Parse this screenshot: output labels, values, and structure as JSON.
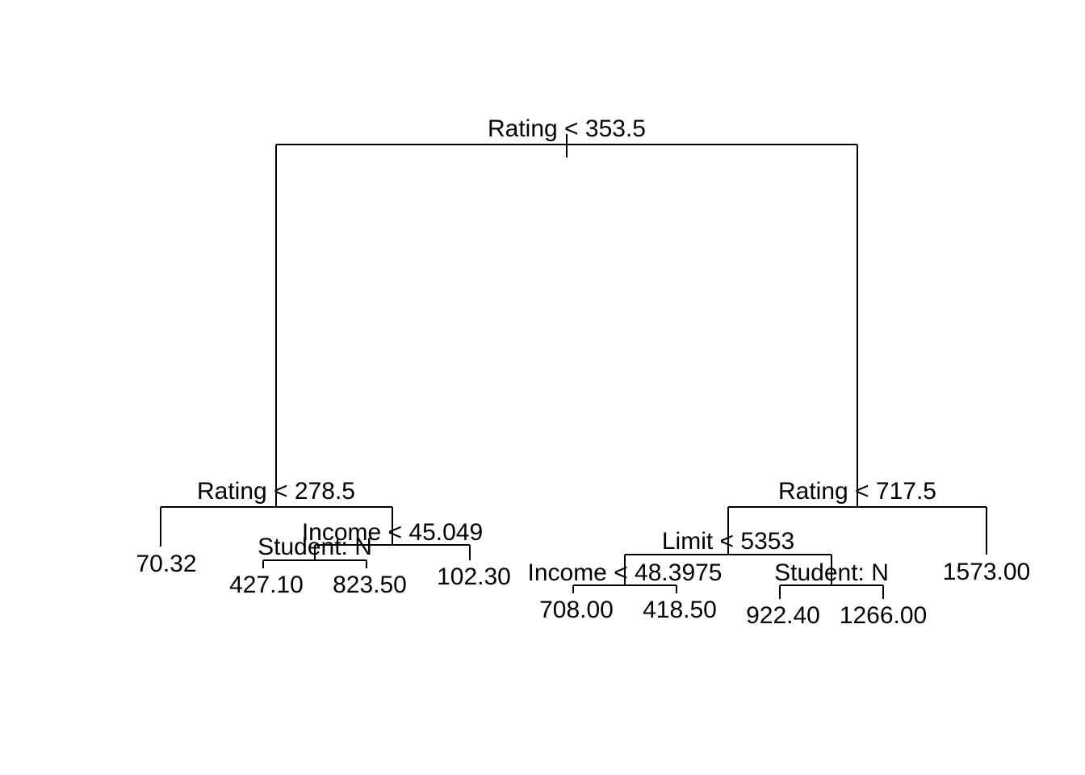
{
  "tree": {
    "root": {
      "split": "Rating < 353.5",
      "left": {
        "split": "Rating < 278.5",
        "left": {
          "leaf": "70.32"
        },
        "right": {
          "split": "Income < 45.049",
          "left": {
            "split": "Student: N",
            "left": {
              "leaf": "427.10"
            },
            "right": {
              "leaf": "823.50"
            }
          },
          "right": {
            "leaf": "102.30"
          }
        }
      },
      "right": {
        "split": "Rating < 717.5",
        "left": {
          "split": "Limit < 5353",
          "left": {
            "split": "Income < 48.3975",
            "left": {
              "leaf": "708.00"
            },
            "right": {
              "leaf": "418.50"
            }
          },
          "right": {
            "split": "Student: N",
            "left": {
              "leaf": "922.40"
            },
            "right": {
              "leaf": "1266.00"
            }
          }
        },
        "right": {
          "leaf": "1573.00"
        }
      }
    }
  }
}
